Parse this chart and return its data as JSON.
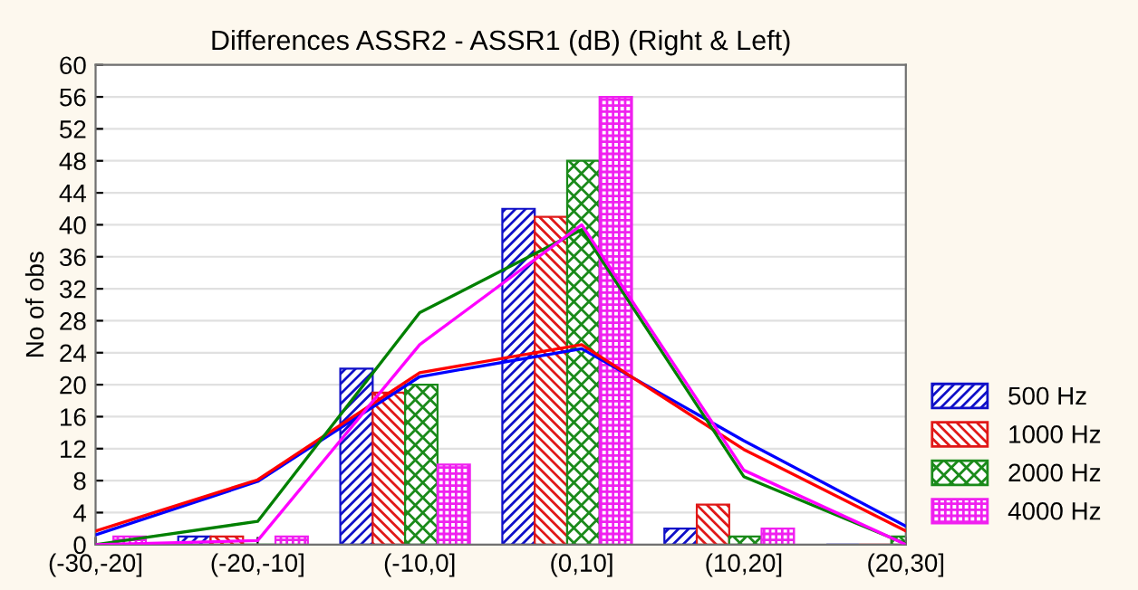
{
  "chart_data": {
    "type": "bar",
    "title": "Differences ASSR2 - ASSR1 (dB) (Right & Left)",
    "ylabel": "No of obs",
    "categories": [
      "(-30,-20]",
      "(-20,-10]",
      "(-10,0]",
      "(0,10]",
      "(10,20]",
      "(20,30]"
    ],
    "ylim": [
      0,
      60
    ],
    "yticks": [
      0,
      4,
      8,
      12,
      16,
      20,
      24,
      28,
      32,
      36,
      40,
      44,
      48,
      52,
      56,
      60
    ],
    "grid": "y",
    "legend": "bottom right",
    "series": [
      {
        "name": "500 Hz",
        "color": "#1010c8",
        "values": [
          0,
          1,
          22,
          42,
          2,
          0
        ]
      },
      {
        "name": "1000 Hz",
        "color": "#e01818",
        "values": [
          0,
          1,
          19,
          41,
          5,
          0
        ]
      },
      {
        "name": "2000 Hz",
        "color": "#1a8a1a",
        "values": [
          0,
          0,
          20,
          48,
          1,
          1
        ]
      },
      {
        "name": "4000 Hz",
        "color": "#f020f0",
        "values": [
          1,
          1,
          10,
          56,
          2,
          0
        ]
      },
      {
        "type": "line",
        "color": "#0000ff",
        "values": [
          1.2,
          7.9,
          21,
          24.5,
          13,
          2.3
        ]
      },
      {
        "type": "line",
        "color": "#ff0000",
        "values": [
          1.7,
          8.1,
          21.5,
          25,
          11.9,
          1.7
        ]
      },
      {
        "type": "line",
        "color": "#008000",
        "values": [
          0,
          2.9,
          29,
          39.4,
          8.5,
          0.1
        ]
      },
      {
        "type": "line",
        "color": "#ff00ff",
        "values": [
          0,
          0.5,
          25,
          40,
          9.3,
          0
        ]
      }
    ]
  }
}
